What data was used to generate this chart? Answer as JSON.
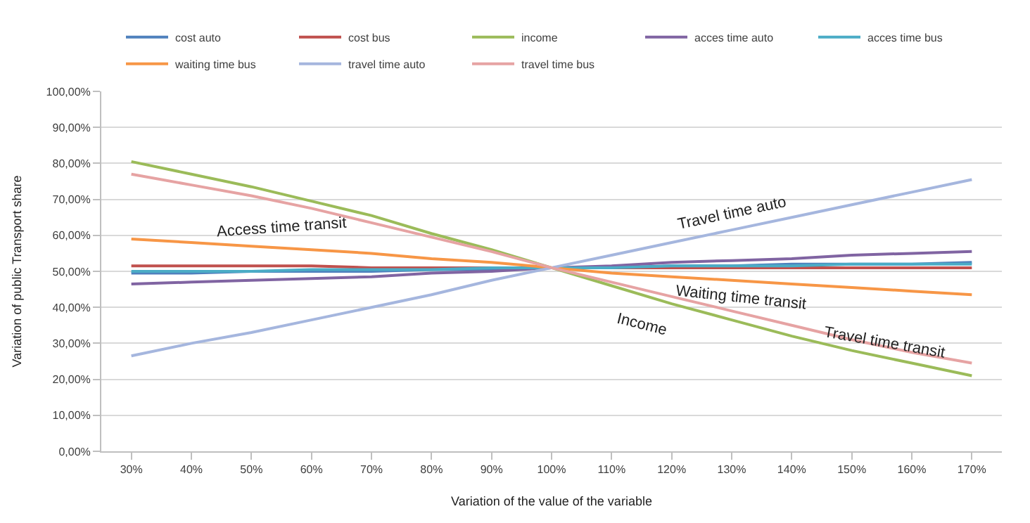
{
  "chart_data": {
    "type": "line",
    "xlabel": "Variation of the value of the variable",
    "ylabel": "Variation of public Transport share",
    "categories": [
      "30%",
      "40%",
      "50%",
      "60%",
      "70%",
      "80%",
      "90%",
      "100%",
      "110%",
      "120%",
      "130%",
      "140%",
      "150%",
      "160%",
      "170%"
    ],
    "series": [
      {
        "name": "cost auto",
        "color": "#4f81bd",
        "values": [
          49.5,
          49.5,
          50,
          50,
          50,
          50.5,
          50.5,
          51,
          51,
          51.5,
          51.5,
          52,
          52,
          52,
          52.5
        ]
      },
      {
        "name": "cost bus",
        "color": "#c0504d",
        "values": [
          51.5,
          51.5,
          51.5,
          51.5,
          51,
          51,
          51,
          51,
          51,
          51,
          51,
          51,
          51,
          51,
          51
        ]
      },
      {
        "name": "income",
        "color": "#9bbb59",
        "values": [
          80.5,
          77,
          73.5,
          69.5,
          65.5,
          60.5,
          56,
          51,
          46,
          41,
          36.5,
          32,
          28,
          24.5,
          21
        ]
      },
      {
        "name": "acces time auto",
        "color": "#8064a2",
        "values": [
          46.5,
          47,
          47.5,
          48,
          48.5,
          49.5,
          50,
          51,
          51.5,
          52.5,
          53,
          53.5,
          54.5,
          55,
          55.5
        ]
      },
      {
        "name": "acces time bus",
        "color": "#4bacc6",
        "values": [
          50,
          50,
          50,
          50.5,
          50.5,
          50.5,
          51,
          51,
          51,
          51.5,
          51.5,
          51.5,
          52,
          52,
          52
        ]
      },
      {
        "name": "waiting time bus",
        "color": "#f79646",
        "values": [
          59,
          58,
          57,
          56,
          55,
          53.5,
          52.5,
          51,
          49.5,
          48.5,
          47.5,
          46.5,
          45.5,
          44.5,
          43.5
        ]
      },
      {
        "name": "travel time auto",
        "color": "#a5b6de",
        "values": [
          26.5,
          30,
          33,
          36.5,
          40,
          43.5,
          47.5,
          51,
          54.5,
          58,
          61.5,
          65,
          68.5,
          72,
          75.5
        ]
      },
      {
        "name": "travel time bus",
        "color": "#e6a3a3",
        "values": [
          77,
          74,
          71,
          67.5,
          63.5,
          59.5,
          55.5,
          51,
          47,
          43,
          39,
          35,
          31,
          27.5,
          24.5
        ]
      }
    ],
    "ylim": [
      0,
      100
    ],
    "yticks": [
      {
        "value": 0,
        "label": "0,00%"
      },
      {
        "value": 10,
        "label": "10,00%"
      },
      {
        "value": 20,
        "label": "20,00%"
      },
      {
        "value": 30,
        "label": "30,00%"
      },
      {
        "value": 40,
        "label": "40,00%"
      },
      {
        "value": 50,
        "label": "50,00%"
      },
      {
        "value": 60,
        "label": "60,00%"
      },
      {
        "value": 70,
        "label": "70,00%"
      },
      {
        "value": 80,
        "label": "80,00%"
      },
      {
        "value": 90,
        "label": "90,00%"
      },
      {
        "value": 100,
        "label": "100,00%"
      }
    ],
    "annotations": [
      "Access time transit",
      "Travel time auto",
      "Waiting time transit",
      "Income",
      "Travel time transit"
    ],
    "grid": "y",
    "legend": "top",
    "marker": "none",
    "line_style": "solid"
  }
}
